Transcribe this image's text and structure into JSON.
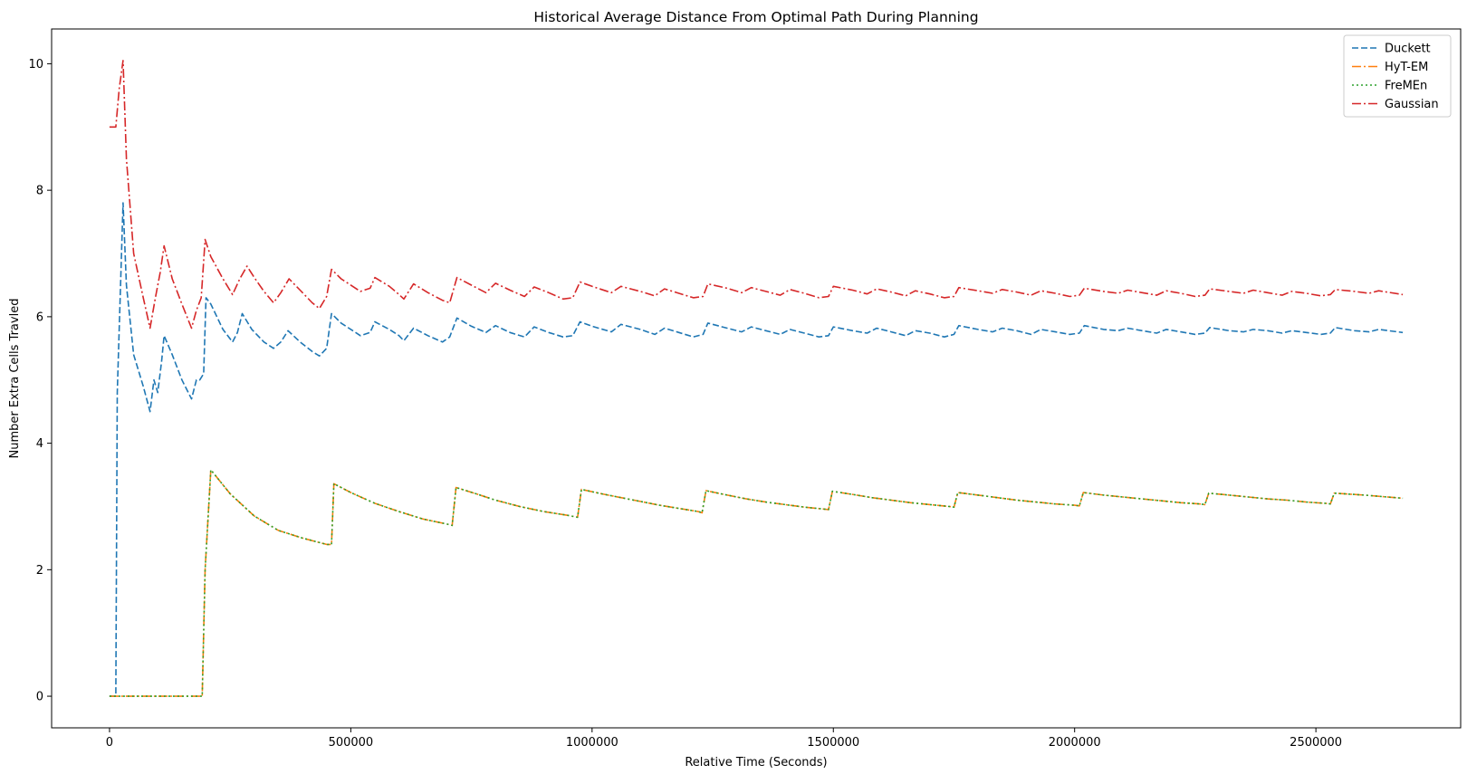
{
  "chart_data": {
    "type": "line",
    "title": "Historical Average Distance From Optimal Path During Planning",
    "xlabel": "Relative Time (Seconds)",
    "ylabel": "Number Extra Cells Travled",
    "xlim": [
      -120000,
      2800000
    ],
    "ylim": [
      -0.5,
      10.55
    ],
    "xticks": [
      0,
      500000,
      1000000,
      1500000,
      2000000,
      2500000
    ],
    "xtick_labels": [
      "0",
      "500000",
      "1000000",
      "1500000",
      "2000000",
      "2500000"
    ],
    "yticks": [
      0,
      2,
      4,
      6,
      8,
      10
    ],
    "ytick_labels": [
      "0",
      "2",
      "4",
      "6",
      "8",
      "10"
    ],
    "grid": false,
    "legend_position": "top-right",
    "series": [
      {
        "name": "Duckett",
        "color": "#1f77b4",
        "dash": "dashed",
        "x": [
          0,
          13000,
          16000,
          28000,
          35000,
          50000,
          70000,
          84000,
          92000,
          100000,
          108000,
          113000,
          130000,
          150000,
          170000,
          180000,
          187000,
          195000,
          200000,
          210000,
          235000,
          255000,
          265000,
          275000,
          295000,
          320000,
          340000,
          355000,
          370000,
          395000,
          420000,
          435000,
          450000,
          460000,
          480000,
          520000,
          540000,
          550000,
          580000,
          600000,
          610000,
          630000,
          660000,
          690000,
          705000,
          720000,
          750000,
          780000,
          800000,
          830000,
          860000,
          880000,
          910000,
          940000,
          960000,
          975000,
          1000000,
          1040000,
          1060000,
          1100000,
          1130000,
          1150000,
          1180000,
          1210000,
          1230000,
          1240000,
          1280000,
          1310000,
          1330000,
          1360000,
          1390000,
          1410000,
          1440000,
          1470000,
          1490000,
          1500000,
          1540000,
          1570000,
          1590000,
          1620000,
          1650000,
          1670000,
          1700000,
          1730000,
          1750000,
          1760000,
          1800000,
          1830000,
          1850000,
          1880000,
          1910000,
          1930000,
          1960000,
          1990000,
          2010000,
          2020000,
          2060000,
          2090000,
          2110000,
          2140000,
          2170000,
          2190000,
          2220000,
          2250000,
          2270000,
          2280000,
          2320000,
          2350000,
          2370000,
          2400000,
          2430000,
          2450000,
          2480000,
          2510000,
          2530000,
          2540000,
          2580000,
          2610000,
          2630000,
          2680000
        ],
        "y": [
          0,
          0,
          4.8,
          7.8,
          6.5,
          5.4,
          4.9,
          4.5,
          5.0,
          4.8,
          5.3,
          5.7,
          5.4,
          5.0,
          4.7,
          5.0,
          5.0,
          5.1,
          6.3,
          6.2,
          5.8,
          5.6,
          5.75,
          6.05,
          5.8,
          5.6,
          5.5,
          5.6,
          5.78,
          5.6,
          5.45,
          5.38,
          5.5,
          6.05,
          5.9,
          5.7,
          5.75,
          5.92,
          5.8,
          5.7,
          5.62,
          5.82,
          5.7,
          5.6,
          5.68,
          5.98,
          5.85,
          5.75,
          5.86,
          5.75,
          5.68,
          5.84,
          5.75,
          5.68,
          5.7,
          5.92,
          5.85,
          5.76,
          5.88,
          5.8,
          5.72,
          5.82,
          5.75,
          5.68,
          5.72,
          5.9,
          5.82,
          5.76,
          5.84,
          5.78,
          5.72,
          5.8,
          5.74,
          5.68,
          5.7,
          5.84,
          5.78,
          5.74,
          5.82,
          5.76,
          5.7,
          5.78,
          5.74,
          5.68,
          5.72,
          5.86,
          5.8,
          5.76,
          5.82,
          5.78,
          5.72,
          5.8,
          5.76,
          5.72,
          5.74,
          5.86,
          5.8,
          5.78,
          5.82,
          5.78,
          5.74,
          5.8,
          5.76,
          5.72,
          5.74,
          5.83,
          5.78,
          5.76,
          5.8,
          5.78,
          5.74,
          5.78,
          5.75,
          5.72,
          5.74,
          5.83,
          5.78,
          5.76,
          5.8,
          5.75
        ]
      },
      {
        "name": "HyT-EM",
        "color": "#ff7f0e",
        "dash": "dashdot",
        "x": [
          0,
          192000,
          198000,
          210000,
          250000,
          300000,
          350000,
          400000,
          450000,
          460000,
          465000,
          500000,
          550000,
          600000,
          650000,
          700000,
          710000,
          718000,
          760000,
          800000,
          850000,
          900000,
          950000,
          970000,
          978000,
          1020000,
          1060000,
          1100000,
          1140000,
          1180000,
          1220000,
          1228000,
          1236000,
          1280000,
          1320000,
          1360000,
          1400000,
          1440000,
          1480000,
          1490000,
          1498000,
          1540000,
          1580000,
          1620000,
          1660000,
          1700000,
          1740000,
          1750000,
          1758000,
          1800000,
          1840000,
          1880000,
          1920000,
          1960000,
          2000000,
          2010000,
          2018000,
          2060000,
          2100000,
          2140000,
          2180000,
          2220000,
          2260000,
          2270000,
          2278000,
          2320000,
          2360000,
          2400000,
          2440000,
          2480000,
          2520000,
          2530000,
          2538000,
          2600000,
          2680000
        ],
        "y": [
          0,
          0,
          2.0,
          3.58,
          3.2,
          2.85,
          2.62,
          2.5,
          2.4,
          2.4,
          3.36,
          3.22,
          3.05,
          2.92,
          2.8,
          2.72,
          2.7,
          3.3,
          3.2,
          3.1,
          3.0,
          2.92,
          2.86,
          2.83,
          3.27,
          3.2,
          3.14,
          3.08,
          3.02,
          2.97,
          2.92,
          2.9,
          3.25,
          3.18,
          3.12,
          3.07,
          3.03,
          2.99,
          2.96,
          2.95,
          3.24,
          3.19,
          3.14,
          3.1,
          3.06,
          3.03,
          3.0,
          2.99,
          3.22,
          3.18,
          3.14,
          3.1,
          3.07,
          3.04,
          3.02,
          3.01,
          3.22,
          3.18,
          3.15,
          3.12,
          3.09,
          3.06,
          3.04,
          3.03,
          3.21,
          3.18,
          3.15,
          3.12,
          3.1,
          3.07,
          3.05,
          3.04,
          3.21,
          3.18,
          3.13
        ]
      },
      {
        "name": "FreMEn",
        "color": "#2ca02c",
        "dash": "dotted",
        "x": [
          0,
          192000,
          198000,
          210000,
          250000,
          300000,
          350000,
          400000,
          450000,
          460000,
          465000,
          500000,
          550000,
          600000,
          650000,
          700000,
          710000,
          718000,
          760000,
          800000,
          850000,
          900000,
          950000,
          970000,
          978000,
          1020000,
          1060000,
          1100000,
          1140000,
          1180000,
          1220000,
          1228000,
          1236000,
          1280000,
          1320000,
          1360000,
          1400000,
          1440000,
          1480000,
          1490000,
          1498000,
          1540000,
          1580000,
          1620000,
          1660000,
          1700000,
          1740000,
          1750000,
          1758000,
          1800000,
          1840000,
          1880000,
          1920000,
          1960000,
          2000000,
          2010000,
          2018000,
          2060000,
          2100000,
          2140000,
          2180000,
          2220000,
          2260000,
          2270000,
          2278000,
          2320000,
          2360000,
          2400000,
          2440000,
          2480000,
          2520000,
          2530000,
          2538000,
          2600000,
          2680000
        ],
        "y": [
          0,
          0,
          2.0,
          3.58,
          3.2,
          2.85,
          2.62,
          2.5,
          2.4,
          2.4,
          3.36,
          3.22,
          3.05,
          2.92,
          2.8,
          2.72,
          2.7,
          3.3,
          3.2,
          3.1,
          3.0,
          2.92,
          2.86,
          2.83,
          3.27,
          3.2,
          3.14,
          3.08,
          3.02,
          2.97,
          2.92,
          2.9,
          3.25,
          3.18,
          3.12,
          3.07,
          3.03,
          2.99,
          2.96,
          2.95,
          3.24,
          3.19,
          3.14,
          3.1,
          3.06,
          3.03,
          3.0,
          2.99,
          3.22,
          3.18,
          3.14,
          3.1,
          3.07,
          3.04,
          3.02,
          3.01,
          3.22,
          3.18,
          3.15,
          3.12,
          3.09,
          3.06,
          3.04,
          3.03,
          3.21,
          3.18,
          3.15,
          3.12,
          3.1,
          3.07,
          3.05,
          3.04,
          3.21,
          3.18,
          3.13
        ]
      },
      {
        "name": "Gaussian",
        "color": "#d62728",
        "dash": "dashdot",
        "x": [
          0,
          13000,
          20000,
          28000,
          35000,
          50000,
          70000,
          84000,
          95000,
          105000,
          113000,
          130000,
          150000,
          170000,
          180000,
          190000,
          198000,
          210000,
          235000,
          255000,
          270000,
          285000,
          300000,
          320000,
          340000,
          355000,
          372000,
          395000,
          420000,
          435000,
          450000,
          460000,
          480000,
          520000,
          540000,
          550000,
          580000,
          600000,
          610000,
          630000,
          660000,
          690000,
          705000,
          720000,
          750000,
          780000,
          800000,
          830000,
          860000,
          880000,
          910000,
          940000,
          960000,
          975000,
          1000000,
          1040000,
          1060000,
          1100000,
          1130000,
          1150000,
          1180000,
          1210000,
          1230000,
          1240000,
          1280000,
          1310000,
          1330000,
          1360000,
          1390000,
          1410000,
          1440000,
          1470000,
          1490000,
          1500000,
          1540000,
          1570000,
          1590000,
          1620000,
          1650000,
          1670000,
          1700000,
          1730000,
          1750000,
          1760000,
          1800000,
          1830000,
          1850000,
          1880000,
          1910000,
          1930000,
          1960000,
          1990000,
          2010000,
          2020000,
          2060000,
          2090000,
          2110000,
          2140000,
          2170000,
          2190000,
          2220000,
          2250000,
          2270000,
          2280000,
          2320000,
          2350000,
          2370000,
          2400000,
          2430000,
          2450000,
          2480000,
          2510000,
          2530000,
          2540000,
          2580000,
          2610000,
          2630000,
          2680000
        ],
        "y": [
          9.0,
          9.0,
          9.6,
          10.05,
          8.5,
          7.0,
          6.3,
          5.82,
          6.3,
          6.7,
          7.12,
          6.6,
          6.2,
          5.82,
          6.1,
          6.3,
          7.22,
          6.95,
          6.6,
          6.35,
          6.6,
          6.8,
          6.62,
          6.4,
          6.22,
          6.38,
          6.6,
          6.42,
          6.22,
          6.13,
          6.32,
          6.75,
          6.6,
          6.4,
          6.45,
          6.62,
          6.48,
          6.35,
          6.28,
          6.52,
          6.38,
          6.26,
          6.22,
          6.62,
          6.5,
          6.38,
          6.53,
          6.42,
          6.32,
          6.47,
          6.38,
          6.28,
          6.3,
          6.55,
          6.48,
          6.38,
          6.48,
          6.4,
          6.33,
          6.44,
          6.37,
          6.3,
          6.32,
          6.52,
          6.45,
          6.38,
          6.46,
          6.4,
          6.34,
          6.43,
          6.37,
          6.3,
          6.32,
          6.48,
          6.42,
          6.36,
          6.44,
          6.39,
          6.33,
          6.41,
          6.36,
          6.3,
          6.32,
          6.46,
          6.41,
          6.37,
          6.43,
          6.39,
          6.34,
          6.41,
          6.37,
          6.32,
          6.34,
          6.45,
          6.4,
          6.37,
          6.42,
          6.38,
          6.34,
          6.41,
          6.37,
          6.32,
          6.34,
          6.44,
          6.4,
          6.37,
          6.42,
          6.38,
          6.34,
          6.4,
          6.37,
          6.33,
          6.35,
          6.43,
          6.4,
          6.37,
          6.41,
          6.35
        ]
      }
    ]
  }
}
